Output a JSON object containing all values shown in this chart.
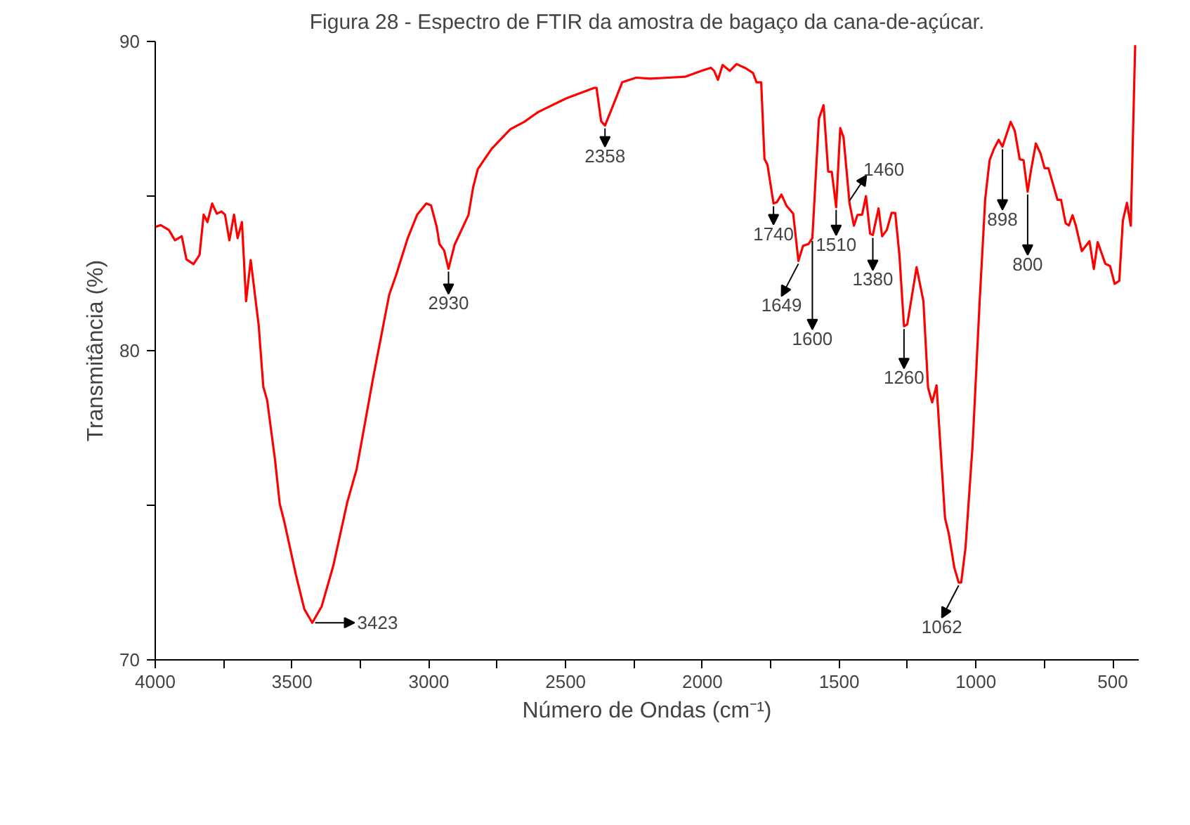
{
  "chart_data": {
    "type": "line",
    "title": "Figura 28 - Espectro de FTIR da amostra de bagaço da cana-de-açúcar.",
    "xlabel": "Número de Ondas (cm⁻¹)",
    "ylabel": "Transmitância (%)",
    "xlim": [
      4000,
      405
    ],
    "ylim": [
      70,
      90
    ],
    "xticks": [
      4000,
      {
        "value": 3750,
        "label": null
      },
      3500,
      {
        "value": 3250,
        "label": null
      },
      3000,
      {
        "value": 2750,
        "label": null
      },
      2500,
      {
        "value": 2250,
        "label": null
      },
      2000,
      {
        "value": 1750,
        "label": null
      },
      1500,
      {
        "value": 1250,
        "label": null
      },
      1000,
      {
        "value": 750,
        "label": null
      },
      500
    ],
    "yticks": [
      70,
      {
        "value": 75,
        "label": null
      },
      80,
      {
        "value": 85,
        "label": null
      },
      90
    ],
    "grid": false,
    "marker": "none",
    "line_style": "solid",
    "series": [
      {
        "color": "#ff0000",
        "x": [
          4000,
          3980,
          3950,
          3928,
          3903,
          3886,
          3860,
          3838,
          3823,
          3809,
          3792,
          3775,
          3758,
          3745,
          3729,
          3712,
          3699,
          3683,
          3668,
          3651,
          3622,
          3605,
          3591,
          3562,
          3545,
          3528,
          3486,
          3455,
          3426,
          3392,
          3349,
          3298,
          3264,
          3204,
          3145,
          3119,
          3077,
          3043,
          3009,
          2992,
          2971,
          2961,
          2944,
          2928,
          2906,
          2855,
          2838,
          2821,
          2770,
          2702,
          2651,
          2600,
          2498,
          2395,
          2387,
          2370,
          2356,
          2336,
          2293,
          2242,
          2191,
          2123,
          2063,
          2003,
          1969,
          1957,
          1943,
          1926,
          1900,
          1875,
          1841,
          1815,
          1802,
          1785,
          1773,
          1762,
          1740,
          1728,
          1711,
          1692,
          1668,
          1649,
          1632,
          1612,
          1598,
          1574,
          1557,
          1540,
          1527,
          1511,
          1496,
          1484,
          1462,
          1446,
          1433,
          1416,
          1402,
          1387,
          1377,
          1356,
          1343,
          1326,
          1308,
          1295,
          1280,
          1263,
          1251,
          1217,
          1192,
          1175,
          1160,
          1144,
          1113,
          1099,
          1079,
          1063,
          1054,
          1038,
          1012,
          987,
          966,
          950,
          934,
          917,
          903,
          873,
          858,
          840,
          826,
          811,
          798,
          781,
          764,
          749,
          735,
          702,
          689,
          672,
          660,
          647,
          635,
          613,
          585,
          569,
          555,
          527,
          510,
          493,
          476,
          463,
          448,
          434,
          418
        ],
        "values": [
          84.0,
          84.06,
          83.9,
          83.57,
          83.7,
          82.95,
          82.8,
          83.1,
          84.4,
          84.16,
          84.76,
          84.43,
          84.5,
          84.4,
          83.57,
          84.4,
          83.64,
          84.16,
          81.6,
          82.93,
          80.83,
          78.83,
          78.4,
          76.46,
          75.05,
          74.46,
          72.76,
          71.64,
          71.2,
          71.72,
          73.05,
          75.1,
          76.16,
          79.1,
          81.8,
          82.46,
          83.64,
          84.39,
          84.76,
          84.7,
          84.0,
          83.45,
          83.24,
          82.65,
          83.42,
          84.39,
          85.28,
          85.87,
          86.53,
          87.16,
          87.4,
          87.72,
          88.16,
          88.5,
          88.5,
          87.42,
          87.28,
          87.72,
          88.68,
          88.83,
          88.8,
          88.83,
          88.86,
          89.05,
          89.15,
          89.05,
          88.76,
          89.24,
          89.05,
          89.27,
          89.13,
          88.98,
          88.68,
          88.68,
          86.2,
          86.01,
          84.76,
          84.8,
          85.05,
          84.68,
          84.43,
          82.9,
          83.39,
          83.45,
          83.64,
          87.5,
          87.94,
          85.79,
          85.78,
          84.64,
          87.2,
          86.9,
          84.76,
          84.04,
          84.39,
          84.4,
          85.0,
          83.79,
          83.74,
          84.6,
          83.7,
          83.9,
          84.46,
          84.45,
          83.12,
          80.79,
          80.85,
          82.7,
          81.6,
          78.8,
          78.33,
          78.88,
          74.58,
          74.07,
          72.98,
          72.5,
          72.5,
          73.64,
          76.98,
          81.5,
          84.92,
          86.16,
          86.53,
          86.82,
          86.6,
          87.4,
          87.11,
          86.19,
          86.16,
          85.14,
          85.87,
          86.7,
          86.38,
          85.9,
          85.9,
          84.88,
          84.88,
          84.12,
          84.05,
          84.38,
          84.05,
          83.22,
          83.54,
          82.64,
          83.51,
          82.81,
          82.74,
          82.16,
          82.26,
          84.2,
          84.78,
          84.04,
          89.88
        ]
      }
    ],
    "annotations": [
      {
        "text": "3423",
        "x": 3426,
        "y": 71.2
      },
      {
        "text": "2930",
        "x": 2928,
        "y": 82.65
      },
      {
        "text": "2358",
        "x": 2356,
        "y": 87.28
      },
      {
        "text": "1740",
        "x": 1740,
        "y": 84.76
      },
      {
        "text": "1649",
        "x": 1649,
        "y": 82.9
      },
      {
        "text": "1600",
        "x": 1598,
        "y": 83.64
      },
      {
        "text": "1510",
        "x": 1511,
        "y": 84.64
      },
      {
        "text": "1460",
        "x": 1462,
        "y": 84.76
      },
      {
        "text": "1380",
        "x": 1377,
        "y": 83.74
      },
      {
        "text": "1260",
        "x": 1263,
        "y": 80.79
      },
      {
        "text": "1062",
        "x": 1063,
        "y": 72.5
      },
      {
        "text": "898",
        "x": 903,
        "y": 86.6
      },
      {
        "text": "800",
        "x": 811,
        "y": 85.14
      }
    ]
  }
}
